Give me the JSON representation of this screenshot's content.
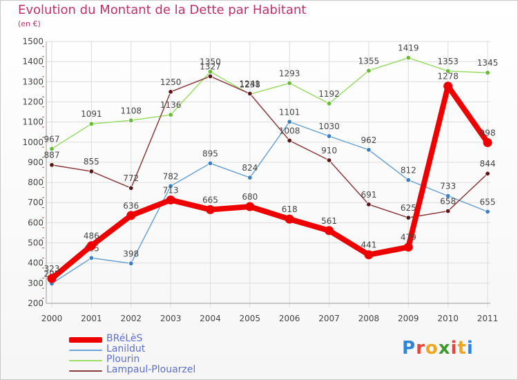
{
  "title": "Evolution du Montant de la Dette par Habitant",
  "subtitle": "(en €)",
  "logo": {
    "text": "Proxiti",
    "colors": [
      "#2f86d6",
      "#e8463b",
      "#f2a51f",
      "#3b9a2e",
      "#e8463b",
      "#f2a51f",
      "#2f86d6"
    ]
  },
  "chart_data": {
    "type": "line",
    "x": [
      "2000",
      "2001",
      "2002",
      "2003",
      "2004",
      "2005",
      "2006",
      "2007",
      "2008",
      "2009",
      "2010",
      "2011"
    ],
    "ylim": [
      200,
      1500
    ],
    "yticks": [
      200,
      300,
      400,
      500,
      600,
      700,
      800,
      900,
      1000,
      1100,
      1200,
      1300,
      1400,
      1500
    ],
    "grid": true,
    "legend_position": "bottom-left",
    "series": [
      {
        "name": "Plourin",
        "color": "#99dd66",
        "marker": "#66bb33",
        "values": [
          967,
          1091,
          1108,
          1136,
          1350,
          1238,
          1293,
          1192,
          1355,
          1419,
          1353,
          1345
        ]
      },
      {
        "name": "Lanildut",
        "color": "#6aa3d5",
        "marker": "#3a7fc2",
        "values": [
          298,
          425,
          398,
          782,
          895,
          824,
          1101,
          1030,
          962,
          812,
          733,
          655
        ]
      },
      {
        "name": "Lampaul-Plouarzel",
        "color": "#8a3a3a",
        "marker": "#5a1515",
        "values": [
          887,
          855,
          772,
          1250,
          1327,
          1241,
          1008,
          910,
          691,
          625,
          658,
          844
        ]
      },
      {
        "name": "BRéLèS",
        "color": "#ee0000",
        "marker": "#ee0000",
        "values": [
          323,
          486,
          636,
          713,
          665,
          680,
          618,
          561,
          441,
          479,
          1278,
          998
        ]
      }
    ],
    "legend_order": [
      "BRéLèS",
      "Lanildut",
      "Plourin",
      "Lampaul-Plouarzel"
    ]
  }
}
